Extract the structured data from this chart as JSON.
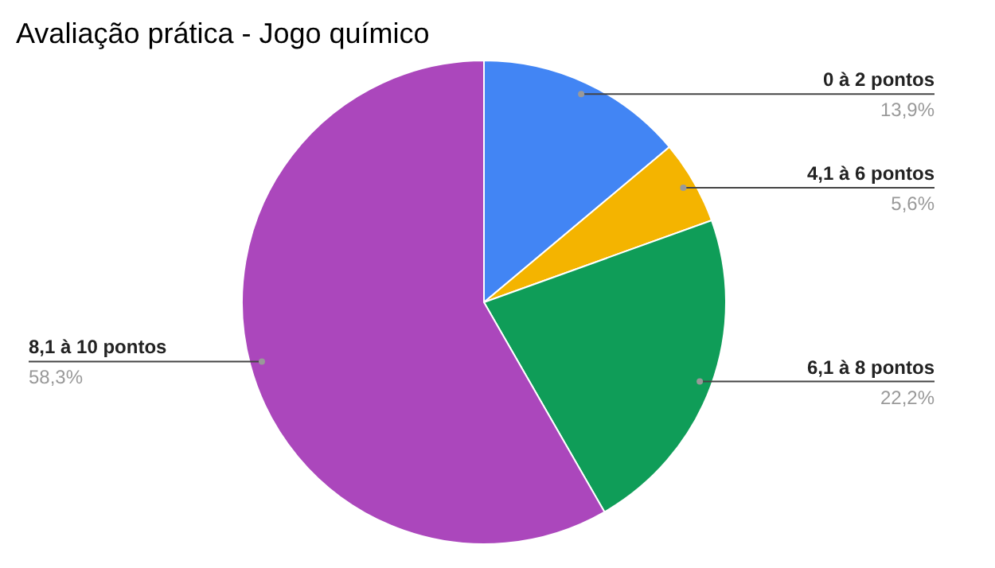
{
  "chart_data": {
    "type": "pie",
    "title": "Avaliação prática - Jogo químico",
    "categories": [
      "0 à 2 pontos",
      "4,1 à 6 pontos",
      "6,1 à 8 pontos",
      "8,1 à 10 pontos"
    ],
    "values": [
      13.9,
      5.6,
      22.2,
      58.3
    ],
    "colors": [
      "#4285f4",
      "#f4b400",
      "#0f9d58",
      "#ab47bc"
    ],
    "value_labels": [
      "13,9%",
      "5,6%",
      "22,2%",
      "58,3%"
    ]
  }
}
